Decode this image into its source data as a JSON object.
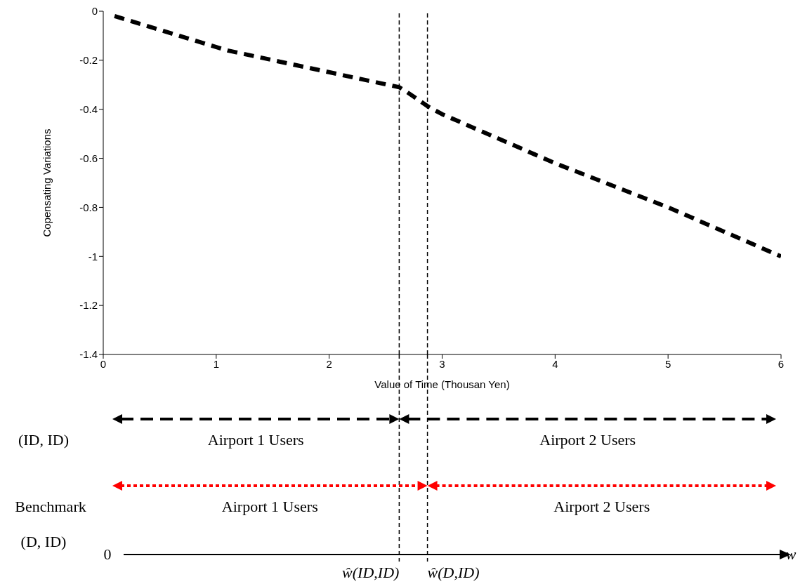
{
  "chart_data": {
    "type": "line",
    "xlabel": "Value of Time (Thousan Yen)",
    "ylabel": "Copensating Variations",
    "x": [
      0.1,
      1.1,
      2.62,
      2.69,
      2.88,
      3.0,
      4.0,
      5.0,
      5.7,
      6.0
    ],
    "series": [
      {
        "color": "#000000",
        "values": [
          -0.02,
          -0.16,
          -0.31,
          -0.33,
          -0.39,
          -0.42,
          -0.62,
          -0.8,
          -0.94,
          -1.0
        ]
      }
    ],
    "xlim": [
      0,
      6
    ],
    "xticks": [
      0,
      1,
      2,
      3,
      4,
      5,
      6
    ],
    "ylim": [
      -1.4,
      0
    ],
    "yticks": [
      -1.4,
      -1.2,
      -1,
      -0.8,
      -0.6,
      -0.4,
      -0.2,
      0
    ],
    "line_style": "dashed",
    "marker": "none",
    "grid": false,
    "legend": false,
    "ref_lines": [
      {
        "axis": "x",
        "value": 2.62,
        "label": "ŵ(ID,ID)",
        "line_style": "dashed",
        "color": "#000000"
      },
      {
        "axis": "x",
        "value": 2.87,
        "label": "ŵ(D,ID)",
        "line_style": "dashed",
        "color": "#000000"
      }
    ],
    "annotations": [
      "(ID, ID)",
      "Airport 1 Users",
      "Airport 2 Users",
      "Benchmark",
      "Airport 1 Users",
      "Airport 2 Users",
      "(D, ID)",
      "0",
      "w"
    ]
  }
}
